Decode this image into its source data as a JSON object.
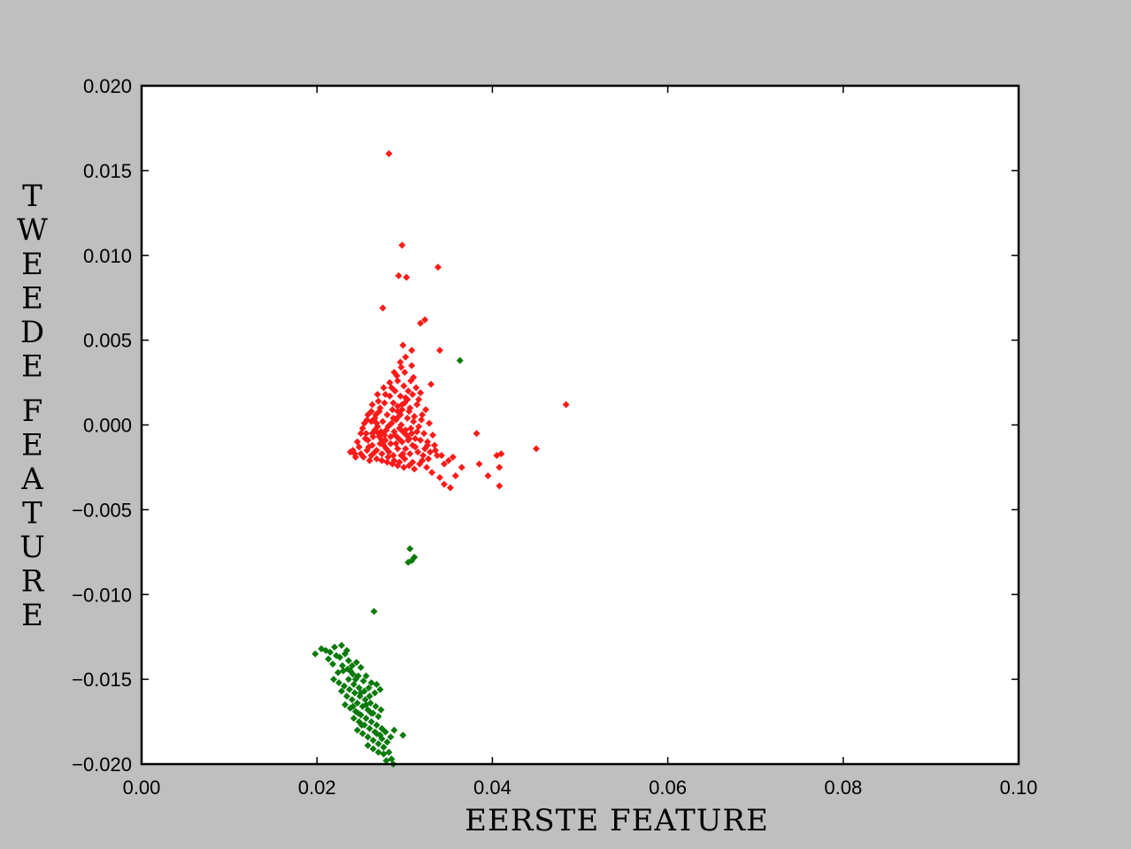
{
  "chart_data": {
    "type": "scatter",
    "xlabel": "EERSTE FEATURE",
    "ylabel": "TWEEDE FEATURE",
    "xlim": [
      0.0,
      0.1
    ],
    "ylim": [
      -0.02,
      0.02
    ],
    "x_ticks": [
      0.0,
      0.02,
      0.04,
      0.06,
      0.08,
      0.1
    ],
    "x_tick_labels": [
      "0.00",
      "0.02",
      "0.04",
      "0.06",
      "0.08",
      "0.10"
    ],
    "y_ticks": [
      0.02,
      0.015,
      0.01,
      0.005,
      0.0,
      -0.005,
      -0.01,
      -0.015,
      -0.02
    ],
    "y_tick_labels": [
      "0.020",
      "0.015",
      "0.010",
      "0.005",
      "0.000",
      "−0.005",
      "−0.010",
      "−0.015",
      "−0.020"
    ],
    "grid": false,
    "marker": "diamond",
    "series": [
      {
        "color": "#ff1a1a",
        "points": [
          [
            0.0282,
            0.016
          ],
          [
            0.0297,
            0.0106
          ],
          [
            0.0293,
            0.0088
          ],
          [
            0.0302,
            0.0087
          ],
          [
            0.0338,
            0.0093
          ],
          [
            0.0275,
            0.0069
          ],
          [
            0.0323,
            0.0062
          ],
          [
            0.0318,
            0.006
          ],
          [
            0.0308,
            0.0044
          ],
          [
            0.0298,
            0.0047
          ],
          [
            0.0295,
            0.0037
          ],
          [
            0.034,
            0.0044
          ],
          [
            0.0308,
            0.0035
          ],
          [
            0.0484,
            0.0012
          ],
          [
            0.045,
            -0.0014
          ],
          [
            0.041,
            -0.0017
          ],
          [
            0.0405,
            -0.0018
          ],
          [
            0.0408,
            -0.0025
          ],
          [
            0.0395,
            -0.003
          ],
          [
            0.0385,
            -0.0023
          ],
          [
            0.0408,
            -0.0036
          ],
          [
            0.0382,
            -0.0005
          ],
          [
            0.0365,
            -0.0025
          ],
          [
            0.0358,
            -0.003
          ],
          [
            0.0355,
            -0.0019
          ],
          [
            0.0352,
            -0.0037
          ],
          [
            0.0345,
            -0.0035
          ],
          [
            0.034,
            -0.0031
          ],
          [
            0.035,
            -0.0021
          ],
          [
            0.0345,
            -0.0023
          ],
          [
            0.0342,
            -0.0018
          ],
          [
            0.0335,
            -0.0015
          ],
          [
            0.0331,
            -0.0028
          ],
          [
            0.0325,
            -0.0025
          ],
          [
            0.032,
            -0.0021
          ],
          [
            0.0326,
            -0.0012
          ],
          [
            0.0332,
            -0.0006
          ],
          [
            0.0328,
            0.0001
          ],
          [
            0.032,
            0.0006
          ],
          [
            0.0314,
            0.0012
          ],
          [
            0.0318,
            0.0019
          ],
          [
            0.033,
            0.0024
          ],
          [
            0.031,
            0.0028
          ],
          [
            0.03,
            0.0031
          ],
          [
            0.0292,
            0.0026
          ],
          [
            0.0285,
            0.0022
          ],
          [
            0.0278,
            0.0018
          ],
          [
            0.027,
            0.0014
          ],
          [
            0.0262,
            0.0008
          ],
          [
            0.0257,
            0.0003
          ],
          [
            0.0252,
            -0.0002
          ],
          [
            0.0255,
            -0.0008
          ],
          [
            0.0248,
            -0.0013
          ],
          [
            0.0243,
            -0.0017
          ],
          [
            0.0253,
            -0.0019
          ],
          [
            0.026,
            -0.0021
          ],
          [
            0.0266,
            -0.0016
          ],
          [
            0.0272,
            -0.0011
          ],
          [
            0.0277,
            -0.0006
          ],
          [
            0.0281,
            -0.0001
          ],
          [
            0.0287,
            0.0004
          ],
          [
            0.0292,
            0.0008
          ],
          [
            0.0297,
            0.0012
          ],
          [
            0.0301,
            0.0016
          ],
          [
            0.0306,
            0.001
          ],
          [
            0.0311,
            0.0005
          ],
          [
            0.0307,
            -0.0002
          ],
          [
            0.0302,
            -0.0006
          ],
          [
            0.0297,
            -0.001
          ],
          [
            0.0292,
            -0.0014
          ],
          [
            0.0287,
            -0.0018
          ],
          [
            0.0282,
            -0.0016
          ],
          [
            0.0276,
            -0.0012
          ],
          [
            0.0271,
            -0.0007
          ],
          [
            0.0266,
            -0.0003
          ],
          [
            0.0262,
            0.0002
          ],
          [
            0.0267,
            0.0006
          ],
          [
            0.0272,
            0.001
          ],
          [
            0.0277,
            0.0013
          ],
          [
            0.0283,
            0.0017
          ],
          [
            0.0289,
            0.002
          ],
          [
            0.0295,
            0.0017
          ],
          [
            0.03,
            0.0013
          ],
          [
            0.0305,
            0.0008
          ],
          [
            0.031,
            0.0002
          ],
          [
            0.0314,
            -0.0004
          ],
          [
            0.0318,
            -0.0009
          ],
          [
            0.0312,
            -0.0013
          ],
          [
            0.0306,
            -0.0017
          ],
          [
            0.03,
            -0.002
          ],
          [
            0.0294,
            -0.0022
          ],
          [
            0.0288,
            -0.0021
          ],
          [
            0.0281,
            -0.0019
          ],
          [
            0.0274,
            -0.0017
          ],
          [
            0.0268,
            -0.0015
          ],
          [
            0.0263,
            -0.0012
          ],
          [
            0.0258,
            -0.0009
          ],
          [
            0.0263,
            -0.0005
          ],
          [
            0.0269,
            -0.0001
          ],
          [
            0.0275,
            0.0002
          ],
          [
            0.028,
            0.0006
          ],
          [
            0.0286,
            0.0009
          ],
          [
            0.0291,
            0.0004
          ],
          [
            0.0296,
            0.0
          ],
          [
            0.0301,
            -0.0003
          ],
          [
            0.0305,
            -0.0008
          ],
          [
            0.0309,
            -0.0012
          ],
          [
            0.0315,
            -0.0016
          ],
          [
            0.0321,
            -0.0018
          ],
          [
            0.0327,
            -0.002
          ],
          [
            0.0317,
            -0.0023
          ],
          [
            0.0309,
            -0.0022
          ],
          [
            0.0298,
            -0.0017
          ],
          [
            0.029,
            -0.0011
          ],
          [
            0.0284,
            -0.0007
          ],
          [
            0.0279,
            -0.0003
          ],
          [
            0.0285,
            0.0001
          ],
          [
            0.029,
            0.0003
          ],
          [
            0.0295,
            0.0006
          ],
          [
            0.0303,
            0.0004
          ],
          [
            0.0298,
            -0.0004
          ],
          [
            0.0293,
            -0.0008
          ],
          [
            0.0288,
            -0.0004
          ],
          [
            0.0283,
            0.0
          ],
          [
            0.0278,
            -0.0009
          ],
          [
            0.0273,
            -0.0004
          ],
          [
            0.0268,
            0.0001
          ],
          [
            0.0264,
            -0.0007
          ],
          [
            0.0259,
            -0.0013
          ],
          [
            0.0256,
            -0.0005
          ],
          [
            0.0301,
            -0.0014
          ],
          [
            0.0296,
            -0.0018
          ],
          [
            0.0308,
            -0.0005
          ],
          [
            0.0312,
            -0.0008
          ],
          [
            0.0316,
            -0.0001
          ],
          [
            0.0322,
            -0.0005
          ],
          [
            0.0326,
            -0.001
          ],
          [
            0.0334,
            -0.0012
          ],
          [
            0.0337,
            -0.0018
          ],
          [
            0.0329,
            -0.0016
          ],
          [
            0.0323,
            -0.0014
          ],
          [
            0.0319,
            0.0003
          ],
          [
            0.0324,
            0.0009
          ],
          [
            0.0316,
            0.0015
          ],
          [
            0.0304,
            0.002
          ],
          [
            0.0299,
            0.0023
          ],
          [
            0.0291,
            0.0029
          ],
          [
            0.0283,
            0.0025
          ],
          [
            0.0276,
            0.0022
          ],
          [
            0.0269,
            0.0018
          ],
          [
            0.0263,
            0.0012
          ],
          [
            0.0258,
            0.0006
          ],
          [
            0.0254,
            0.0001
          ],
          [
            0.025,
            -0.0005
          ],
          [
            0.0246,
            -0.001
          ],
          [
            0.0241,
            -0.0015
          ],
          [
            0.0238,
            -0.0016
          ],
          [
            0.0244,
            -0.0019
          ],
          [
            0.025,
            -0.0017
          ],
          [
            0.0257,
            -0.0015
          ],
          [
            0.0262,
            -0.0018
          ],
          [
            0.0268,
            -0.002
          ],
          [
            0.0274,
            -0.0021
          ],
          [
            0.028,
            -0.0022
          ],
          [
            0.0286,
            -0.0023
          ],
          [
            0.0292,
            -0.0024
          ],
          [
            0.0299,
            -0.0025
          ],
          [
            0.0305,
            -0.0024
          ],
          [
            0.0311,
            -0.0026
          ],
          [
            0.0304,
            -0.0009
          ],
          [
            0.0294,
            -0.0002
          ],
          [
            0.0289,
            -0.0006
          ],
          [
            0.0284,
            -0.0011
          ],
          [
            0.0279,
            -0.0014
          ],
          [
            0.0274,
            -0.0009
          ],
          [
            0.027,
            -0.0005
          ],
          [
            0.0266,
            0.0004
          ],
          [
            0.0271,
            0.0008
          ],
          [
            0.0287,
            0.0013
          ],
          [
            0.0292,
            0.0011
          ],
          [
            0.0297,
            0.0009
          ],
          [
            0.0303,
            0.0015
          ],
          [
            0.0309,
            0.0018
          ],
          [
            0.0313,
            0.0022
          ],
          [
            0.0307,
            0.0026
          ],
          [
            0.0296,
            0.0034
          ],
          [
            0.0288,
            0.0031
          ],
          [
            0.0301,
            0.004
          ]
        ]
      },
      {
        "color": "#0a7a0a",
        "points": [
          [
            0.0363,
            0.0038
          ],
          [
            0.0306,
            -0.0073
          ],
          [
            0.0311,
            -0.0078
          ],
          [
            0.0304,
            -0.0081
          ],
          [
            0.0308,
            -0.008
          ],
          [
            0.0265,
            -0.011
          ],
          [
            0.0198,
            -0.0135
          ],
          [
            0.0205,
            -0.0132
          ],
          [
            0.021,
            -0.0133
          ],
          [
            0.0213,
            -0.0138
          ],
          [
            0.0218,
            -0.0141
          ],
          [
            0.0222,
            -0.0136
          ],
          [
            0.0228,
            -0.013
          ],
          [
            0.0232,
            -0.0135
          ],
          [
            0.0236,
            -0.0139
          ],
          [
            0.024,
            -0.0142
          ],
          [
            0.0245,
            -0.014
          ],
          [
            0.025,
            -0.0143
          ],
          [
            0.0256,
            -0.0148
          ],
          [
            0.0262,
            -0.0152
          ],
          [
            0.0268,
            -0.0153
          ],
          [
            0.0272,
            -0.0156
          ],
          [
            0.0266,
            -0.0158
          ],
          [
            0.0259,
            -0.0155
          ],
          [
            0.0253,
            -0.0151
          ],
          [
            0.0247,
            -0.0148
          ],
          [
            0.0241,
            -0.0147
          ],
          [
            0.0235,
            -0.0144
          ],
          [
            0.0229,
            -0.0142
          ],
          [
            0.0224,
            -0.0146
          ],
          [
            0.0219,
            -0.015
          ],
          [
            0.0225,
            -0.0152
          ],
          [
            0.0231,
            -0.0154
          ],
          [
            0.0237,
            -0.0156
          ],
          [
            0.0243,
            -0.0158
          ],
          [
            0.0249,
            -0.016
          ],
          [
            0.0255,
            -0.0162
          ],
          [
            0.0261,
            -0.0164
          ],
          [
            0.0267,
            -0.0166
          ],
          [
            0.0273,
            -0.0168
          ],
          [
            0.027,
            -0.0172
          ],
          [
            0.0264,
            -0.017
          ],
          [
            0.0258,
            -0.0168
          ],
          [
            0.0252,
            -0.0166
          ],
          [
            0.0246,
            -0.0164
          ],
          [
            0.024,
            -0.0162
          ],
          [
            0.0234,
            -0.016
          ],
          [
            0.0228,
            -0.0157
          ],
          [
            0.0232,
            -0.0165
          ],
          [
            0.0238,
            -0.0167
          ],
          [
            0.0244,
            -0.0169
          ],
          [
            0.025,
            -0.0171
          ],
          [
            0.0256,
            -0.0173
          ],
          [
            0.0262,
            -0.0175
          ],
          [
            0.0268,
            -0.0177
          ],
          [
            0.0274,
            -0.0179
          ],
          [
            0.0278,
            -0.0181
          ],
          [
            0.0272,
            -0.0183
          ],
          [
            0.0266,
            -0.0181
          ],
          [
            0.026,
            -0.0179
          ],
          [
            0.0254,
            -0.0177
          ],
          [
            0.0248,
            -0.0175
          ],
          [
            0.0242,
            -0.0173
          ],
          [
            0.0246,
            -0.018
          ],
          [
            0.0252,
            -0.0182
          ],
          [
            0.0258,
            -0.0184
          ],
          [
            0.0264,
            -0.0186
          ],
          [
            0.027,
            -0.0188
          ],
          [
            0.0276,
            -0.019
          ],
          [
            0.028,
            -0.0187
          ],
          [
            0.0284,
            -0.0184
          ],
          [
            0.0288,
            -0.018
          ],
          [
            0.0298,
            -0.0183
          ],
          [
            0.0282,
            -0.0193
          ],
          [
            0.0276,
            -0.0194
          ],
          [
            0.027,
            -0.0193
          ],
          [
            0.0264,
            -0.0191
          ],
          [
            0.0258,
            -0.0189
          ],
          [
            0.0285,
            -0.0197
          ],
          [
            0.0279,
            -0.0198
          ],
          [
            0.0287,
            -0.02
          ],
          [
            0.0215,
            -0.0134
          ],
          [
            0.022,
            -0.0131
          ],
          [
            0.0226,
            -0.0137
          ],
          [
            0.023,
            -0.0145
          ],
          [
            0.0236,
            -0.015
          ],
          [
            0.0242,
            -0.0153
          ],
          [
            0.0248,
            -0.0155
          ],
          [
            0.0254,
            -0.0157
          ],
          [
            0.026,
            -0.016
          ],
          [
            0.0234,
            -0.0133
          ],
          [
            0.0238,
            -0.0145
          ],
          [
            0.0244,
            -0.015
          ],
          [
            0.025,
            -0.0158
          ],
          [
            0.0256,
            -0.0165
          ],
          [
            0.0262,
            -0.017
          ],
          [
            0.0268,
            -0.0182
          ],
          [
            0.0274,
            -0.0185
          ],
          [
            0.0251,
            -0.0177
          ],
          [
            0.0247,
            -0.017
          ],
          [
            0.0241,
            -0.0166
          ]
        ]
      }
    ]
  }
}
